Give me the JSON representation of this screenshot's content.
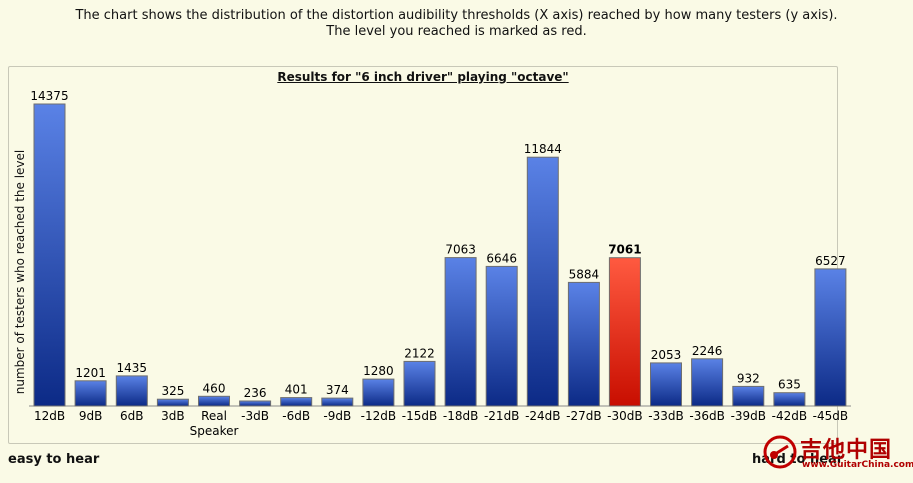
{
  "intro": {
    "line1": "The chart shows the distribution of the distortion audibility thresholds (X axis) reached by how many testers (y axis).",
    "line2": "The level you reached is marked as red."
  },
  "chart_data": {
    "type": "bar",
    "title": "Results for \"6 inch driver\" playing \"octave\"",
    "xlabel": "",
    "ylabel": "number of testers who reached the level",
    "categories": [
      "12dB",
      "9dB",
      "6dB",
      "3dB",
      "Real Speaker",
      "-3dB",
      "-6dB",
      "-9dB",
      "-12dB",
      "-15dB",
      "-18dB",
      "-21dB",
      "-24dB",
      "-27dB",
      "-30dB",
      "-33dB",
      "-36dB",
      "-39dB",
      "-42dB",
      "-45dB"
    ],
    "values": [
      14375,
      1201,
      1435,
      325,
      460,
      236,
      401,
      374,
      1280,
      2122,
      7063,
      6646,
      11844,
      5884,
      7061,
      2053,
      2246,
      932,
      635,
      6527
    ],
    "highlight_index": 14,
    "ylim": [
      0,
      14375
    ],
    "grid": false,
    "legend": "none",
    "colors": {
      "bar_top": "#5a82e6",
      "bar_bottom": "#0c2a86",
      "highlight_top": "#ff5a40",
      "highlight_bottom": "#c80e00"
    }
  },
  "footer": {
    "left": "easy to hear",
    "right": "hard to hear"
  },
  "watermark": {
    "text": "吉他中国",
    "subtext": "www.GuitarChina.com"
  }
}
